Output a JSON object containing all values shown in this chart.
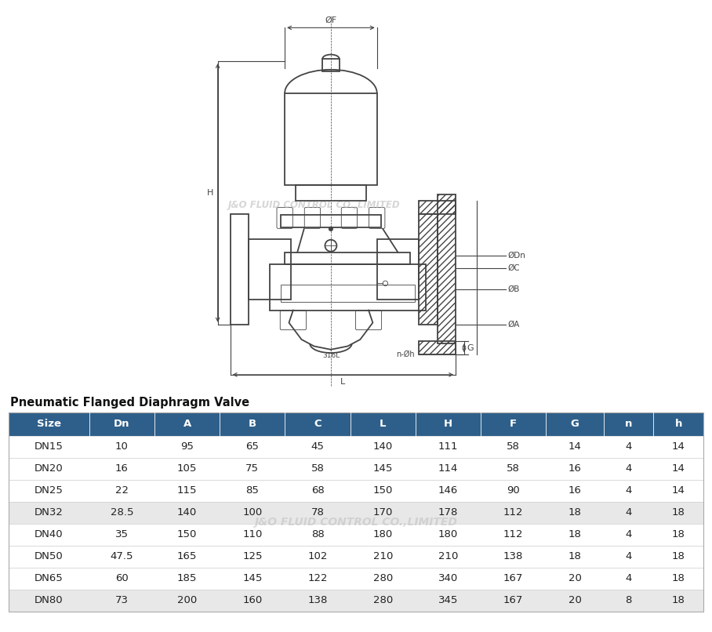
{
  "subtitle": "Pneumatic Flanged Diaphragm Valve",
  "bg_color": "#ffffff",
  "header_color": "#2e5f8a",
  "header_text_color": "#ffffff",
  "row_alt_color": "#e8e8e8",
  "row_normal_color": "#ffffff",
  "watermark": "J&O FLUID CONTROL CO.,LIMITED",
  "columns": [
    "Size",
    "Dn",
    "A",
    "B",
    "C",
    "L",
    "H",
    "F",
    "G",
    "n",
    "h"
  ],
  "rows": [
    [
      "DN15",
      "10",
      "95",
      "65",
      "45",
      "140",
      "111",
      "58",
      "14",
      "4",
      "14"
    ],
    [
      "DN20",
      "16",
      "105",
      "75",
      "58",
      "145",
      "114",
      "58",
      "16",
      "4",
      "14"
    ],
    [
      "DN25",
      "22",
      "115",
      "85",
      "68",
      "150",
      "146",
      "90",
      "16",
      "4",
      "14"
    ],
    [
      "DN32",
      "28.5",
      "140",
      "100",
      "78",
      "170",
      "178",
      "112",
      "18",
      "4",
      "18"
    ],
    [
      "DN40",
      "35",
      "150",
      "110",
      "88",
      "180",
      "180",
      "112",
      "18",
      "4",
      "18"
    ],
    [
      "DN50",
      "47.5",
      "165",
      "125",
      "102",
      "210",
      "210",
      "138",
      "18",
      "4",
      "18"
    ],
    [
      "DN65",
      "60",
      "185",
      "145",
      "122",
      "280",
      "340",
      "167",
      "20",
      "4",
      "18"
    ],
    [
      "DN80",
      "73",
      "200",
      "160",
      "138",
      "280",
      "345",
      "167",
      "20",
      "8",
      "18"
    ]
  ],
  "lc": "#444444",
  "lc_thin": "#666666",
  "alt_indices": [
    3,
    7
  ]
}
